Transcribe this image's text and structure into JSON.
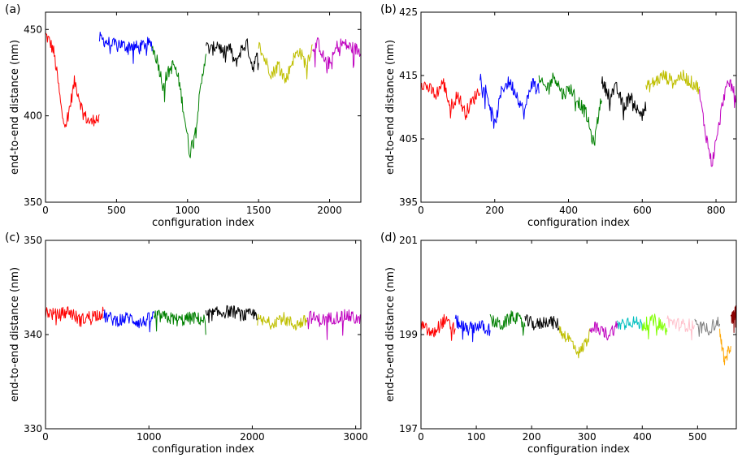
{
  "chart_data": [
    {
      "panel_label": "(a)",
      "type": "line",
      "xlabel": "configuration index",
      "ylabel": "end-to-end distance (nm)",
      "xlim": [
        0,
        2220
      ],
      "ylim": [
        350,
        460
      ],
      "xticks": [
        0,
        500,
        1000,
        1500,
        2000
      ],
      "yticks": [
        350,
        400,
        450
      ],
      "segments": [
        {
          "color": "#ff0000",
          "x_start": 0,
          "x_end": 380,
          "anchors": [
            447,
            443,
            437,
            420,
            400,
            396,
            407,
            420,
            412,
            402,
            398,
            396,
            399,
            397
          ]
        },
        {
          "color": "#0000ff",
          "x_start": 380,
          "x_end": 750,
          "anchors": [
            445,
            443,
            441,
            442,
            440,
            441,
            439,
            442,
            441
          ]
        },
        {
          "color": "#008000",
          "x_start": 750,
          "x_end": 1130,
          "anchors": [
            440,
            432,
            418,
            425,
            430,
            420,
            400,
            378,
            392,
            415,
            438
          ]
        },
        {
          "color": "#000000",
          "x_start": 1130,
          "x_end": 1500,
          "anchors": [
            440,
            438,
            442,
            436,
            440,
            430,
            438,
            442,
            428,
            436
          ]
        },
        {
          "color": "#bfbf00",
          "x_start": 1500,
          "x_end": 1880,
          "anchors": [
            441,
            432,
            424,
            430,
            420,
            432,
            438,
            430,
            440
          ]
        },
        {
          "color": "#bf00bf",
          "x_start": 1880,
          "x_end": 2220,
          "anchors": [
            440,
            442,
            432,
            430,
            440,
            442,
            440,
            439,
            437
          ]
        }
      ]
    },
    {
      "panel_label": "(b)",
      "type": "line",
      "xlabel": "configuration index",
      "ylabel": "end-to-end distance (nm)",
      "xlim": [
        0,
        855
      ],
      "ylim": [
        395,
        425
      ],
      "xticks": [
        0,
        200,
        400,
        600,
        800
      ],
      "yticks": [
        395,
        405,
        415,
        425
      ],
      "segments": [
        {
          "color": "#ff0000",
          "x_start": 0,
          "x_end": 160,
          "anchors": [
            414,
            413,
            412,
            414,
            410,
            412,
            409,
            411,
            413
          ]
        },
        {
          "color": "#0000ff",
          "x_start": 160,
          "x_end": 320,
          "anchors": [
            415,
            412,
            407,
            413,
            414,
            412,
            409,
            414,
            413
          ]
        },
        {
          "color": "#008000",
          "x_start": 320,
          "x_end": 490,
          "anchors": [
            414,
            413,
            415,
            412,
            413,
            411,
            409,
            404,
            412
          ]
        },
        {
          "color": "#000000",
          "x_start": 490,
          "x_end": 610,
          "anchors": [
            414,
            412,
            413,
            410,
            412,
            409,
            410
          ]
        },
        {
          "color": "#bfbf00",
          "x_start": 610,
          "x_end": 755,
          "anchors": [
            413,
            414,
            415,
            414,
            415,
            414,
            413
          ]
        },
        {
          "color": "#bf00bf",
          "x_start": 755,
          "x_end": 855,
          "anchors": [
            412,
            406,
            401,
            406,
            412,
            414,
            411
          ]
        }
      ]
    },
    {
      "panel_label": "(c)",
      "type": "line",
      "xlabel": "configuration index",
      "ylabel": "end-to-end distance (nm)",
      "xlim": [
        0,
        3050
      ],
      "ylim": [
        330,
        350
      ],
      "xticks": [
        0,
        1000,
        2000,
        3000
      ],
      "yticks": [
        330,
        340,
        350
      ],
      "segments": [
        {
          "color": "#ff0000",
          "x_start": 0,
          "x_end": 560,
          "anchors": [
            342.5,
            342,
            342.5,
            341.5,
            342,
            342.3
          ]
        },
        {
          "color": "#0000ff",
          "x_start": 560,
          "x_end": 1050,
          "anchors": [
            342,
            341.5,
            341.8,
            341.2,
            342
          ]
        },
        {
          "color": "#008000",
          "x_start": 1050,
          "x_end": 1550,
          "anchors": [
            342,
            341.8,
            341.5,
            341.8,
            341.5
          ]
        },
        {
          "color": "#000000",
          "x_start": 1550,
          "x_end": 2050,
          "anchors": [
            342,
            342.3,
            342.5,
            342,
            342.2
          ]
        },
        {
          "color": "#bfbf00",
          "x_start": 2050,
          "x_end": 2530,
          "anchors": [
            341.5,
            341.2,
            341.8,
            341,
            341.5
          ]
        },
        {
          "color": "#bf00bf",
          "x_start": 2530,
          "x_end": 3050,
          "anchors": [
            342,
            341.5,
            341.8,
            342,
            341.5
          ]
        }
      ]
    },
    {
      "panel_label": "(d)",
      "type": "line",
      "xlabel": "configuration index",
      "ylabel": "end-to-end distance (nm)",
      "xlim": [
        0,
        570
      ],
      "ylim": [
        197,
        201
      ],
      "xticks": [
        0,
        100,
        200,
        300,
        400,
        500
      ],
      "yticks": [
        197,
        199,
        201
      ],
      "segments": [
        {
          "color": "#ff0000",
          "x_start": 0,
          "x_end": 62,
          "anchors": [
            199.2,
            199,
            199.3,
            199.1
          ]
        },
        {
          "color": "#0000ff",
          "x_start": 62,
          "x_end": 125,
          "anchors": [
            199.3,
            199.1,
            199.2,
            199.1
          ]
        },
        {
          "color": "#008000",
          "x_start": 125,
          "x_end": 188,
          "anchors": [
            199.3,
            199.2,
            199.4,
            199.2
          ]
        },
        {
          "color": "#000000",
          "x_start": 188,
          "x_end": 250,
          "anchors": [
            199.3,
            199.2,
            199.3,
            199.2
          ]
        },
        {
          "color": "#bfbf00",
          "x_start": 250,
          "x_end": 305,
          "anchors": [
            199.1,
            198.9,
            198.6,
            199
          ]
        },
        {
          "color": "#bf00bf",
          "x_start": 305,
          "x_end": 355,
          "anchors": [
            199.2,
            199.1,
            199,
            199.2
          ]
        },
        {
          "color": "#00bfbf",
          "x_start": 355,
          "x_end": 400,
          "anchors": [
            199.2,
            199.3,
            199.2
          ]
        },
        {
          "color": "#80ff00",
          "x_start": 400,
          "x_end": 445,
          "anchors": [
            199.2,
            199.3,
            199.1
          ]
        },
        {
          "color": "#ffc0cb",
          "x_start": 445,
          "x_end": 495,
          "anchors": [
            199.3,
            199.2,
            199.2
          ]
        },
        {
          "color": "#808080",
          "x_start": 495,
          "x_end": 540,
          "anchors": [
            199.2,
            199.1,
            199.3
          ]
        },
        {
          "color": "#ffa500",
          "x_start": 540,
          "x_end": 560,
          "anchors": [
            199,
            198.4,
            198.8
          ]
        },
        {
          "color": "#8b0000",
          "x_start": 560,
          "x_end": 570,
          "anchors": [
            199.3,
            199.5
          ]
        }
      ]
    }
  ]
}
